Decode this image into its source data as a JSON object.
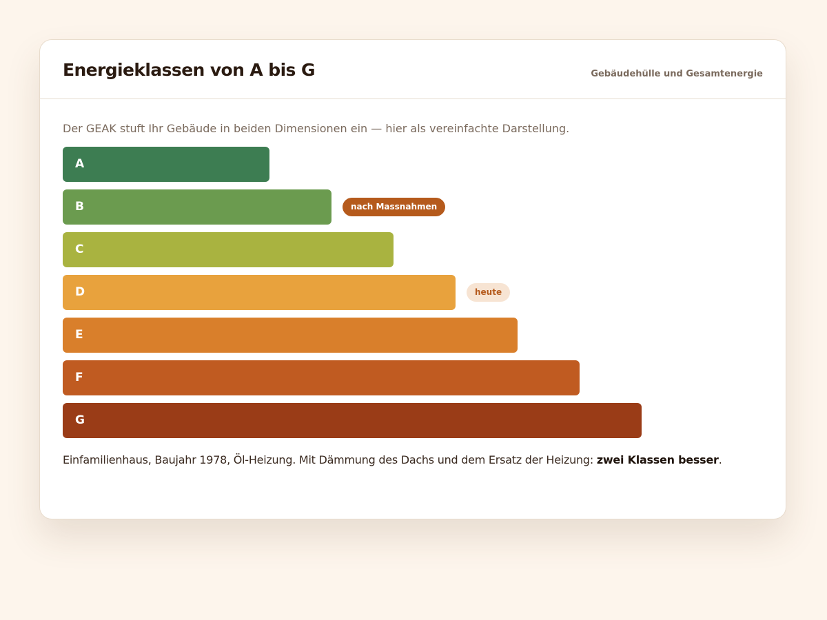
{
  "header": {
    "title": "Energieklassen von A bis G",
    "subtitle": "Gebäudehülle und Gesamtenergie"
  },
  "intro": "Der GEAK stuft Ihr Gebäude in beiden Dimensionen ein — hier als vereinfachte Darstellung.",
  "chart_data": {
    "type": "bar",
    "title": "Energieklassen von A bis G",
    "categories": [
      "A",
      "B",
      "C",
      "D",
      "E",
      "F",
      "G"
    ],
    "colors": [
      "#3d7d52",
      "#6b9b4f",
      "#a9b340",
      "#e8a23d",
      "#d97f2b",
      "#c05b21",
      "#9a3c17"
    ],
    "markers": [
      {
        "category": "B",
        "label": "nach Massnahmen",
        "style": "dark"
      },
      {
        "category": "D",
        "label": "heute",
        "style": "light"
      }
    ]
  },
  "footer": {
    "text": "Einfamilienhaus, Baujahr 1978, Öl-Heizung. Mit Dämmung des Dachs und dem Ersatz der Heizung: ",
    "emphasis": "zwei Klassen besser",
    "suffix": "."
  },
  "colors": {
    "background": "#fdf5ec",
    "card": "#ffffff",
    "tag_dark": "#b55a1c",
    "tag_light_bg": "#f7e4d3"
  }
}
